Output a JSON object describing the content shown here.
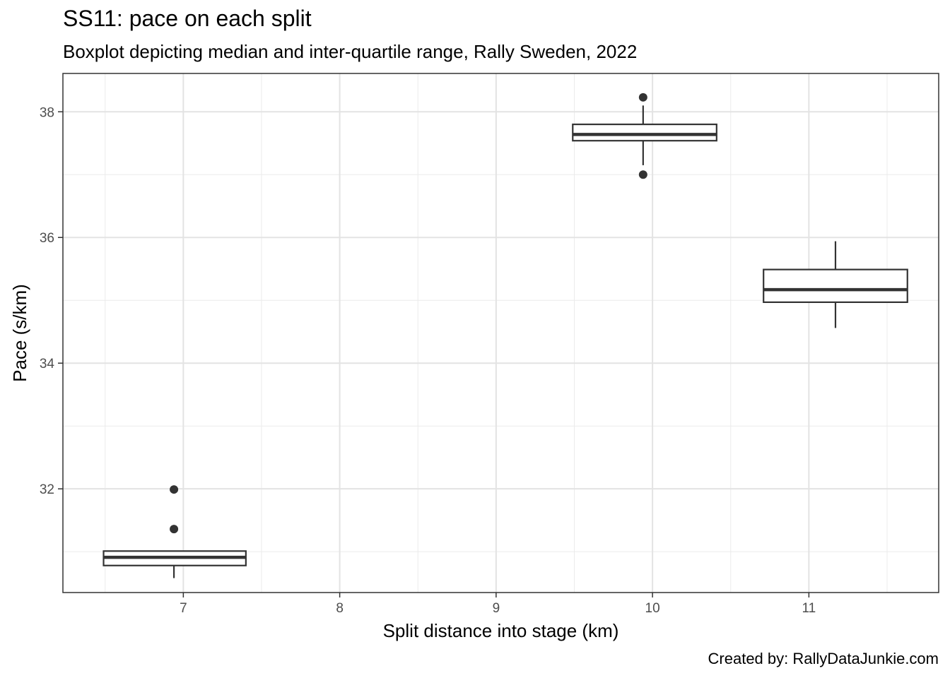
{
  "chart_data": {
    "type": "boxplot",
    "title": "SS11: pace on each split",
    "subtitle": "Boxplot depicting median and inter-quartile range, Rally Sweden, 2022",
    "xlabel": "Split distance into stage (km)",
    "ylabel": "Pace (s/km)",
    "caption": "Created by: RallyDataJunkie.com",
    "xlim": [
      6.23,
      11.83
    ],
    "ylim": [
      30.35,
      38.61
    ],
    "xticks": [
      7,
      8,
      9,
      10,
      11
    ],
    "yticks": [
      32,
      34,
      36,
      38
    ],
    "grid": true,
    "boxes": [
      {
        "x": 6.94,
        "x_from": 6.49,
        "x_to": 7.4,
        "whisker_low": 30.58,
        "q1": 30.78,
        "median": 30.91,
        "q3": 31.01,
        "whisker_high": 31.01,
        "outliers": [
          31.36,
          31.99
        ]
      },
      {
        "x": 9.94,
        "x_from": 9.49,
        "x_to": 10.41,
        "whisker_low": 37.15,
        "q1": 37.54,
        "median": 37.64,
        "q3": 37.8,
        "whisker_high": 38.1,
        "outliers": [
          38.23,
          37.0
        ]
      },
      {
        "x": 11.17,
        "x_from": 10.71,
        "x_to": 11.63,
        "whisker_low": 34.56,
        "q1": 34.97,
        "median": 35.17,
        "q3": 35.49,
        "whisker_high": 35.94,
        "outliers": []
      }
    ]
  }
}
